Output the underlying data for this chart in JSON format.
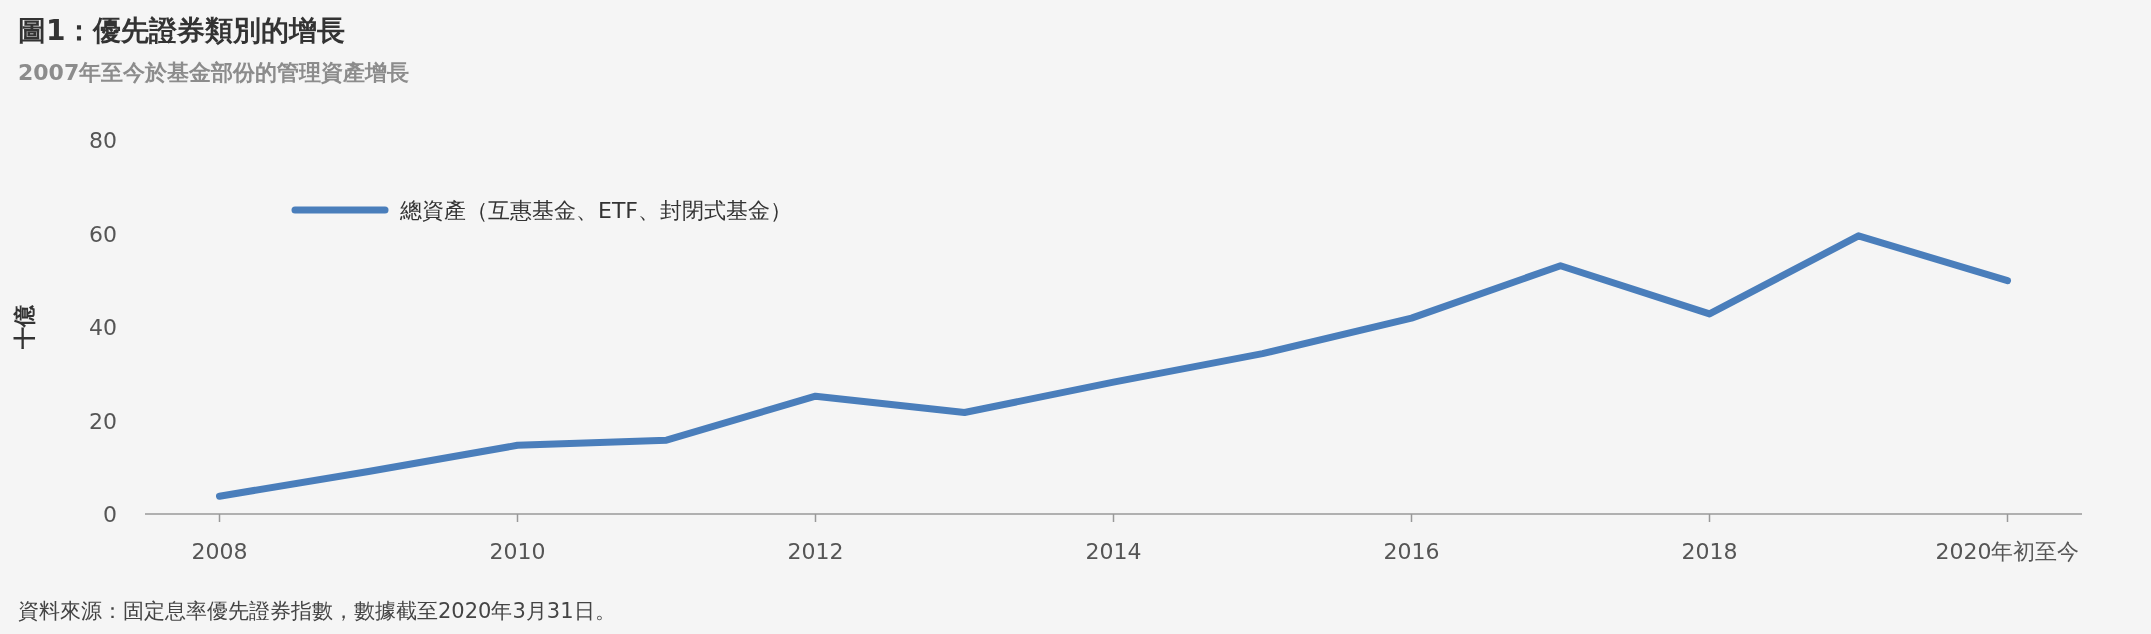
{
  "chart_data": {
    "type": "line",
    "title": "圖1：優先證券類別的增長",
    "subtitle": "2007年至今於基金部份的管理資產增長",
    "ylabel": "十億",
    "x": [
      2008,
      2009,
      2010,
      2011,
      2012,
      2013,
      2014,
      2015,
      2016,
      2017,
      2018,
      2019,
      2020
    ],
    "series": [
      {
        "name": "總資產（互惠基金、ETF、封閉式基金）",
        "color": "#4a7ebb",
        "values": [
          3.8,
          9.1,
          14.7,
          15.8,
          25.2,
          21.7,
          28.2,
          34.3,
          41.9,
          53.1,
          42.8,
          59.5,
          49.9
        ]
      }
    ],
    "xlim": [
      2007.5,
      2020.5
    ],
    "xticks": [
      2008,
      2010,
      2012,
      2014,
      2016,
      2018,
      {
        "value": 2020,
        "label": "2020年初至今"
      }
    ],
    "ylim": [
      0,
      80
    ],
    "yticks": [
      0,
      20,
      40,
      60,
      80
    ],
    "grid": false,
    "legend": "top left",
    "marker": "none",
    "line_style": "solid",
    "annotations": [
      "資料來源：固定息率優先證券指數，數據截至2020年3月31日。"
    ]
  }
}
